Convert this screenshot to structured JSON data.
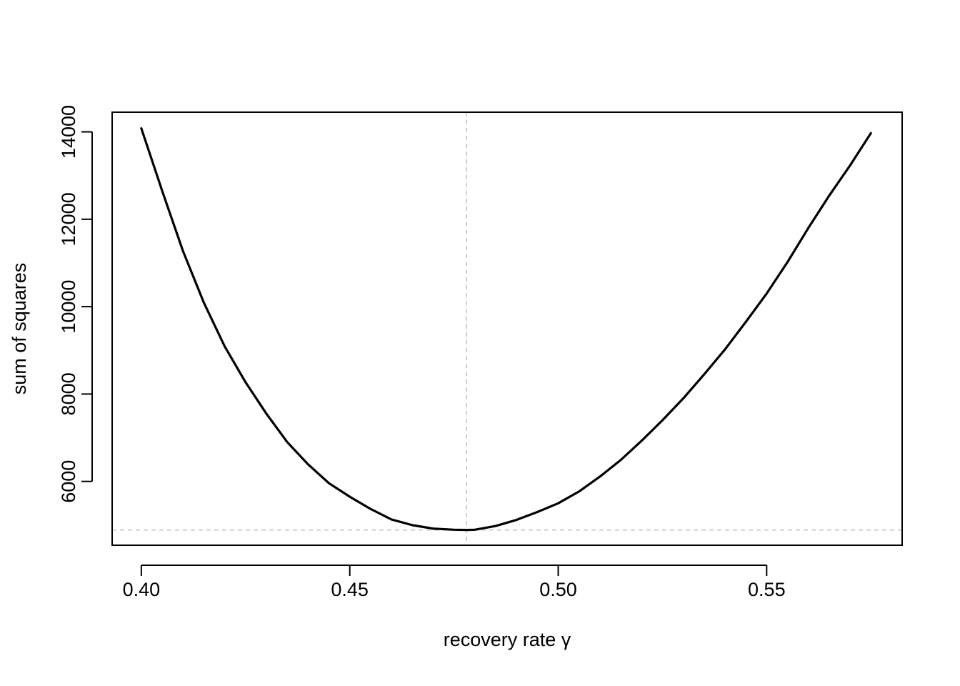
{
  "chart_data": {
    "type": "line",
    "title": "",
    "xlabel": "recovery rate γ",
    "ylabel": "sum of squares",
    "xlim": [
      0.393,
      0.5825
    ],
    "ylim": [
      4540,
      14450
    ],
    "x_ticks": [
      0.4,
      0.45,
      0.5,
      0.55
    ],
    "x_tick_labels": [
      "0.40",
      "0.45",
      "0.50",
      "0.55"
    ],
    "y_ticks": [
      6000,
      8000,
      10000,
      12000,
      14000
    ],
    "y_tick_labels": [
      "6000",
      "8000",
      "10000",
      "12000",
      "14000"
    ],
    "grid": false,
    "series": [
      {
        "x": [
          0.4,
          0.405,
          0.41,
          0.415,
          0.42,
          0.425,
          0.43,
          0.435,
          0.44,
          0.445,
          0.45,
          0.455,
          0.46,
          0.465,
          0.47,
          0.475,
          0.478,
          0.48,
          0.485,
          0.49,
          0.495,
          0.5,
          0.505,
          0.51,
          0.515,
          0.52,
          0.525,
          0.53,
          0.535,
          0.54,
          0.545,
          0.55,
          0.555,
          0.56,
          0.565,
          0.57,
          0.575
        ],
        "y": [
          14080,
          12650,
          11270,
          10090,
          9090,
          8270,
          7550,
          6900,
          6390,
          5960,
          5650,
          5370,
          5130,
          5000,
          4920,
          4895,
          4890,
          4895,
          4980,
          5120,
          5300,
          5500,
          5770,
          6110,
          6490,
          6930,
          7400,
          7900,
          8450,
          9020,
          9650,
          10300,
          11020,
          11800,
          12540,
          13230,
          13970
        ]
      }
    ],
    "reference_lines": {
      "vertical_x": 0.478,
      "horizontal_y": 4890,
      "style": "dashed",
      "color": "#c0c0c0"
    },
    "line_color": "#000000"
  }
}
